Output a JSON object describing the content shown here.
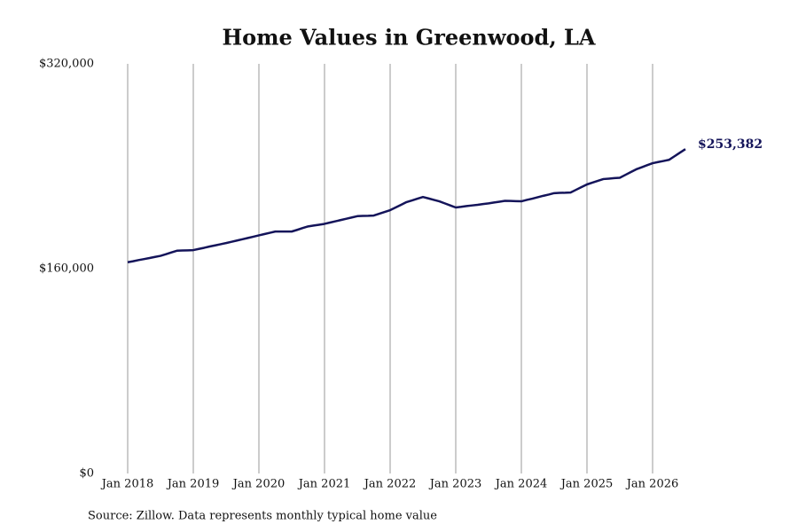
{
  "chart_data": {
    "type": "line",
    "title": "Home Values in Greenwood, LA",
    "source": "Source: Zillow. Data represents monthly typical home value",
    "x": [
      "2018-01",
      "2018-02",
      "2018-03",
      "2018-04",
      "2018-05",
      "2018-06",
      "2018-07",
      "2018-08",
      "2018-09",
      "2018-10",
      "2018-11",
      "2018-12",
      "2019-01",
      "2019-02",
      "2019-03",
      "2019-04",
      "2019-05",
      "2019-06",
      "2019-07",
      "2019-08",
      "2019-09",
      "2019-10",
      "2019-11",
      "2019-12",
      "2020-01",
      "2020-02",
      "2020-03",
      "2020-04",
      "2020-05",
      "2020-06",
      "2020-07",
      "2020-08",
      "2020-09",
      "2020-10",
      "2020-11",
      "2020-12",
      "2021-01",
      "2021-02",
      "2021-03",
      "2021-04",
      "2021-05",
      "2021-06",
      "2021-07",
      "2021-08",
      "2021-09",
      "2021-10",
      "2021-11",
      "2021-12",
      "2022-01",
      "2022-02",
      "2022-03",
      "2022-04",
      "2022-05",
      "2022-06",
      "2022-07",
      "2022-08",
      "2022-09",
      "2022-10",
      "2022-11",
      "2022-12",
      "2023-01",
      "2023-02",
      "2023-03",
      "2023-04",
      "2023-05",
      "2023-06",
      "2023-07",
      "2023-08",
      "2023-09",
      "2023-10",
      "2023-11",
      "2023-12",
      "2024-01",
      "2024-02",
      "2024-03",
      "2024-04",
      "2024-05",
      "2024-06",
      "2024-07",
      "2024-08",
      "2024-09",
      "2024-10",
      "2024-11",
      "2024-12",
      "2025-01",
      "2025-02",
      "2025-03",
      "2025-04",
      "2025-05",
      "2025-06",
      "2025-07",
      "2025-08",
      "2025-09",
      "2025-10",
      "2025-11",
      "2025-12",
      "2026-01",
      "2026-02",
      "2026-03",
      "2026-04",
      "2026-05",
      "2026-06",
      "2026-07"
    ],
    "series": [
      {
        "name": "Typical home value",
        "color": "#14145a",
        "values": [
          165000,
          165800,
          166700,
          167500,
          168300,
          169200,
          170000,
          171300,
          172700,
          174000,
          174200,
          174300,
          174500,
          175400,
          176300,
          177300,
          178200,
          179100,
          180000,
          181000,
          182000,
          183000,
          184000,
          185000,
          186000,
          187000,
          188000,
          189000,
          189000,
          189000,
          189000,
          190300,
          191700,
          193000,
          193700,
          194300,
          195000,
          196000,
          197000,
          198000,
          199000,
          200000,
          201000,
          201200,
          201300,
          201500,
          202900,
          204300,
          205700,
          207800,
          209900,
          212000,
          213300,
          214700,
          216000,
          214900,
          213700,
          212600,
          211000,
          209400,
          207800,
          208300,
          208900,
          209400,
          209900,
          210500,
          211000,
          211700,
          212300,
          213000,
          212900,
          212700,
          212600,
          213700,
          214700,
          215800,
          216900,
          217900,
          219000,
          219200,
          219300,
          219500,
          221600,
          223700,
          225800,
          227200,
          228600,
          230000,
          230300,
          230700,
          231000,
          233200,
          235400,
          237600,
          239200,
          240800,
          242400,
          243300,
          244100,
          245000,
          247800,
          250600,
          253382
        ],
        "last_value_label": "$253,382"
      }
    ],
    "xticks": [
      {
        "value": "2018-01",
        "label": "Jan 2018"
      },
      {
        "value": "2019-01",
        "label": "Jan 2019"
      },
      {
        "value": "2020-01",
        "label": "Jan 2020"
      },
      {
        "value": "2021-01",
        "label": "Jan 2021"
      },
      {
        "value": "2022-01",
        "label": "Jan 2022"
      },
      {
        "value": "2023-01",
        "label": "Jan 2023"
      },
      {
        "value": "2024-01",
        "label": "Jan 2024"
      },
      {
        "value": "2025-01",
        "label": "Jan 2025"
      },
      {
        "value": "2026-01",
        "label": "Jan 2026"
      }
    ],
    "ylim": [
      0,
      320000
    ],
    "yticks": [
      {
        "value": 0,
        "label": "$0"
      },
      {
        "value": 160000,
        "label": "$160,000"
      },
      {
        "value": 320000,
        "label": "$320,000"
      }
    ],
    "grid": "x"
  }
}
